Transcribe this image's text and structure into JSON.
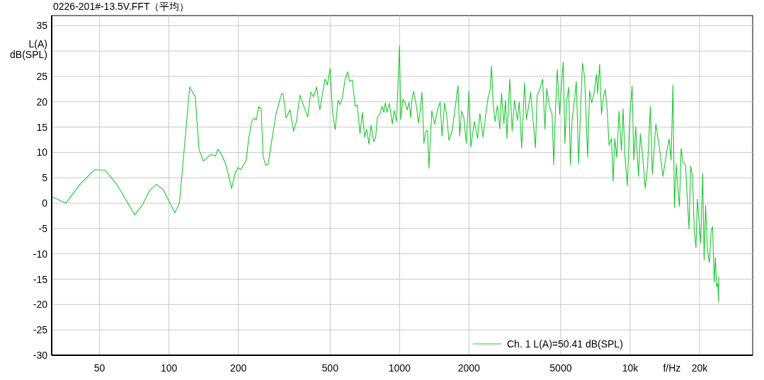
{
  "chart_data": {
    "type": "line",
    "title": "0226-201#-13.5V.FFT（平均）",
    "xlabel": "f/Hz",
    "ylabel": "L(A) dB(SPL)",
    "log": "x",
    "grid": true,
    "legend": "bottom right",
    "marker": "none",
    "line_style": "solid",
    "xlim": [
      31,
      34000
    ],
    "ylim": [
      -30,
      37
    ],
    "xticks": [
      50,
      100,
      200,
      500,
      1000,
      2000,
      5000,
      {
        "value": 10000,
        "label": "10k"
      },
      {
        "value": 20000,
        "label": "20k"
      }
    ],
    "yticks": [
      -30,
      -25,
      -20,
      -15,
      -10,
      -5,
      0,
      5,
      10,
      15,
      20,
      25,
      {
        "value": 30,
        "label": null
      },
      35
    ],
    "series": [
      {
        "name": "Ch. 1 L(A)=50.41 dB(SPL)",
        "color": "#1ec832",
        "x": [
          31,
          35.7,
          41.3,
          47.6,
          52.9,
          59.6,
          71,
          76.8,
          82.4,
          88.2,
          94.3,
          106,
          111,
          117,
          123,
          130,
          135,
          141,
          152,
          159,
          163,
          169,
          176,
          187,
          193,
          199,
          205,
          216,
          222,
          229,
          234,
          239,
          245,
          251,
          256,
          263,
          269,
          275,
          291,
          308,
          313,
          322,
          335,
          347,
          357,
          370,
          388,
          400,
          412,
          424,
          437,
          451,
          475,
          486,
          500,
          512,
          526,
          541,
          552,
          565,
          581,
          595,
          607,
          624,
          642,
          655,
          674,
          690,
          706,
          720,
          737,
          752,
          773,
          788,
          801,
          821,
          841,
          855,
          867,
          882,
          903,
          931,
          947,
          970,
          1000,
          1012,
          1034,
          1054,
          1079,
          1100,
          1119,
          1132,
          1151,
          1182,
          1210,
          1230,
          1251,
          1275,
          1300,
          1321,
          1341,
          1380,
          1420,
          1464,
          1500,
          1528,
          1568,
          1599,
          1638,
          1689,
          1738,
          1793,
          1823,
          1858,
          1902,
          1948,
          2000,
          2038,
          2112,
          2180,
          2231,
          2302,
          2368,
          2426,
          2472,
          2506,
          2548,
          2596,
          2658,
          2722,
          2768,
          2834,
          2880,
          2922,
          3006,
          3078,
          3154,
          3244,
          3306,
          3386,
          3484,
          3550,
          3636,
          3706,
          3768,
          3886,
          3950,
          4044,
          4172,
          4272,
          4344,
          4478,
          4588,
          4664,
          4742,
          4832,
          4948,
          5042,
          5128,
          5214,
          5314,
          5416,
          5506,
          5600,
          5706,
          5842,
          5982,
          6096,
          6214,
          6346,
          6544,
          6672,
          6814,
          6978,
          7146,
          7232,
          7372,
          7512,
          7674,
          7802,
          7952,
          8104,
          8300,
          8440,
          8580,
          8744,
          8952,
          9168,
          9322,
          9500,
          9728,
          9962,
          10200,
          10370,
          10570,
          10870,
          11080,
          11350,
          11620,
          11900,
          12240,
          12480,
          12930,
          13400,
          13880,
          14390,
          14770,
          15050,
          15340,
          15560,
          15860,
          16170,
          16360,
          16640,
          16960,
          17380,
          17670,
          18010,
          18310,
          18660,
          18980,
          19300,
          19580,
          19910,
          20240,
          20630,
          20940,
          21240,
          21650,
          22070,
          22440,
          22770,
          23150,
          23430,
          23710,
          24000,
          24170,
          24220
        ],
        "values": [
          1.3,
          0,
          3.8,
          6.6,
          6.5,
          3.6,
          -2.3,
          -0.3,
          2.5,
          3.7,
          2.7,
          -1.9,
          0,
          11.7,
          22.9,
          21,
          10.6,
          8.3,
          9.6,
          9.3,
          10.6,
          9.6,
          7.8,
          2.9,
          5.7,
          7,
          6.6,
          8.4,
          12.9,
          16.2,
          16.8,
          16.4,
          19,
          18.6,
          9.2,
          7.5,
          7.6,
          10.4,
          17.6,
          21.6,
          21.5,
          16.8,
          18.4,
          14.2,
          16.1,
          21.3,
          18.6,
          17,
          21.9,
          21,
          22.9,
          18.4,
          24.5,
          23.3,
          26.6,
          17.9,
          14.5,
          20.3,
          19.4,
          20.8,
          24.5,
          25.9,
          24,
          24.3,
          19.1,
          19.4,
          13.7,
          17.9,
          13,
          14.6,
          11.6,
          15.4,
          12.1,
          13,
          17,
          17.5,
          19.1,
          17.9,
          19.8,
          17.9,
          19.7,
          15.6,
          18.3,
          16.1,
          31,
          16.5,
          20.5,
          19.9,
          18.4,
          19.9,
          16.8,
          20.5,
          22.1,
          19.3,
          15.8,
          18.4,
          21.9,
          11.8,
          14.2,
          14.3,
          6.9,
          18.2,
          15.6,
          18.6,
          19.9,
          13.2,
          19.8,
          17.5,
          12.4,
          14.2,
          18.4,
          23.2,
          13.2,
          18.2,
          16.8,
          11.8,
          22.1,
          11.1,
          16.1,
          12.8,
          17.7,
          13,
          17.7,
          21,
          22.4,
          27.1,
          19.6,
          16.1,
          19.3,
          14.6,
          21.7,
          15.6,
          20.3,
          12.8,
          24.5,
          14.2,
          20.3,
          16.3,
          20,
          10.9,
          23.7,
          16.5,
          19.3,
          21.9,
          17.9,
          10.9,
          21.2,
          22.2,
          24.5,
          14.6,
          22.6,
          18.9,
          17.5,
          7.6,
          18,
          26.4,
          17.5,
          23.6,
          27.8,
          11.8,
          20.3,
          22.9,
          7.6,
          16.5,
          19.3,
          24,
          7.8,
          18.4,
          27.6,
          25,
          9,
          22.2,
          19.8,
          21.7,
          25.4,
          21.7,
          27.4,
          17.5,
          21.2,
          22.4,
          18.4,
          11.4,
          12.8,
          4.3,
          12.8,
          9,
          18.1,
          10.4,
          18.6,
          9,
          3.4,
          17,
          23.1,
          8.5,
          15.1,
          5.3,
          13.7,
          9,
          2.9,
          7.1,
          19.1,
          5.7,
          15.6,
          10.9,
          5.3,
          10,
          12.7,
          8.5,
          23.3,
          -0.9,
          7.6,
          1.9,
          -0.6,
          10.8,
          8,
          7.6,
          1.5,
          -5.1,
          7.3,
          5.2,
          -5.6,
          -8.8,
          0.8,
          -3.7,
          -7.9,
          5.9,
          -11.2,
          -0.4,
          -9.3,
          -11.7,
          -5.6,
          -4.6,
          -15.6,
          -10.7,
          -16.4,
          -15.9,
          -19.5,
          -14.5
        ]
      }
    ]
  }
}
